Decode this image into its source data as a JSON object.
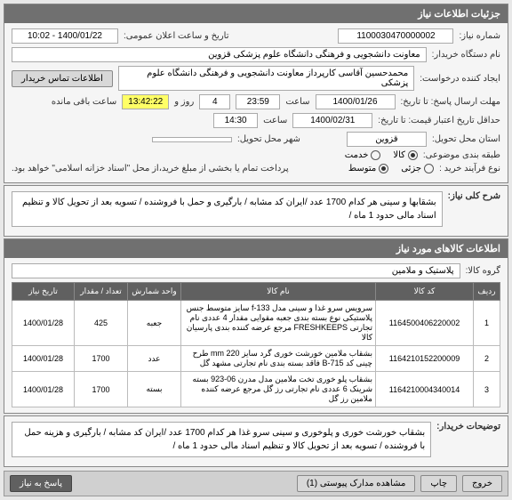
{
  "panels": {
    "details": {
      "title": "جزئیات اطلاعات نیاز"
    },
    "fields": {
      "need_no_label": "شماره نیاز:",
      "need_no": "1100030470000002",
      "announce_label": "تاریخ و ساعت اعلان عمومی:",
      "announce": "1400/01/22 - 10:02",
      "buyer_org_label": "نام دستگاه خریدار:",
      "buyer_org": "معاونت دانشجویی و فرهنگی دانشگاه علوم پزشکی قزوین",
      "creator_label": "ایجاد کننده درخواست:",
      "creator": "محمدحسین آقاسی کارپرداز معاونت دانشجویی و فرهنگی دانشگاه علوم پزشکی",
      "contact_btn": "اطلاعات تماس خریدار",
      "deadline_label": "مهلت ارسال پاسخ: تا تاریخ:",
      "deadline_date": "1400/01/26",
      "time_label": "ساعت",
      "deadline_time": "23:59",
      "remain_days": "4",
      "day_and": "روز و",
      "remain_time": "13:42:22",
      "remain_suffix": "ساعت باقی مانده",
      "valid_until_label": "حداقل تاریخ اعتبار قیمت: تا تاریخ:",
      "valid_date": "1400/02/31",
      "valid_time": "14:30",
      "delivery_prov_label": "استان محل تحویل:",
      "delivery_prov": "قزوین",
      "delivery_city_label": "شهر محل تحویل:",
      "classify_label": "طبقه بندی موضوعی:",
      "class_goods": "کالا",
      "class_service": "خدمت",
      "process_label": "نوع فرآیند خرید :",
      "proc_small": "جزئی",
      "proc_medium": "متوسط",
      "note": "پرداخت تمام یا بخشی از مبلغ خرید،از محل \"اسناد خزانه اسلامی\" خواهد بود."
    },
    "summary": {
      "title": "شرح کلی نیاز:",
      "text": "بشقابها و سینی هر کدام 1700 عدد /ایران کد مشابه / بارگیری و حمل با فروشنده / تسویه بعد از تحویل کالا و تنظیم اسناد مالی حدود 1 ماه /"
    },
    "items": {
      "title": "اطلاعات کالاهای مورد نیاز",
      "group_label": "گروه کالا:",
      "group": "پلاستیک و ملامین",
      "columns": [
        "ردیف",
        "کد کالا",
        "نام کالا",
        "واحد شمارش",
        "تعداد / مقدار",
        "تاریخ نیاز"
      ],
      "rows": [
        {
          "idx": "1",
          "code": "1164500406220002",
          "name": "سرویس سرو غذا و سینی مدل f-133 سایز متوسط جنس پلاستیکی نوع بسته بندی جعبه مقوایی مقدار 4 عددی نام تجارتی FRESHKEEPS مرجع عرضه کننده بندی پارسیان کالا",
          "unit": "جعبه",
          "qty": "425",
          "date": "1400/01/28"
        },
        {
          "idx": "2",
          "code": "1164210152200009",
          "name": "بشقاب ملامین خورشت خوری گرد سایز mm 220 طرح چینی کد B-715 فاقد بسته بندی نام تجارتی مشهد گل",
          "unit": "عدد",
          "qty": "1700",
          "date": "1400/01/28"
        },
        {
          "idx": "3",
          "code": "1164210004340014",
          "name": "بشقاب پلو خوری تخت ملامین مدل مدرن 06-923 بسته شرینک 6 عددی نام تجارتی رز گل مرجع عرضه کننده ملامین رز گل",
          "unit": "بسته",
          "qty": "1700",
          "date": "1400/01/28"
        }
      ]
    },
    "buyer_desc": {
      "title": "توضیحات خریدار:",
      "text": "بشقاب خورشت خوری و پلوخوری و سینی سرو غذا هر کدام 1700 عدد /ایران کد مشابه / بارگیری و هزینه حمل با فروشنده / تسویه بعد از تحویل کالا و تنظیم اسناد مالی حدود 1 ماه /"
    }
  },
  "footer": {
    "exit": "خروج",
    "print": "چاپ",
    "attach": "مشاهده مدارک پیوستی (1)",
    "reply": "پاسخ به نیاز"
  }
}
